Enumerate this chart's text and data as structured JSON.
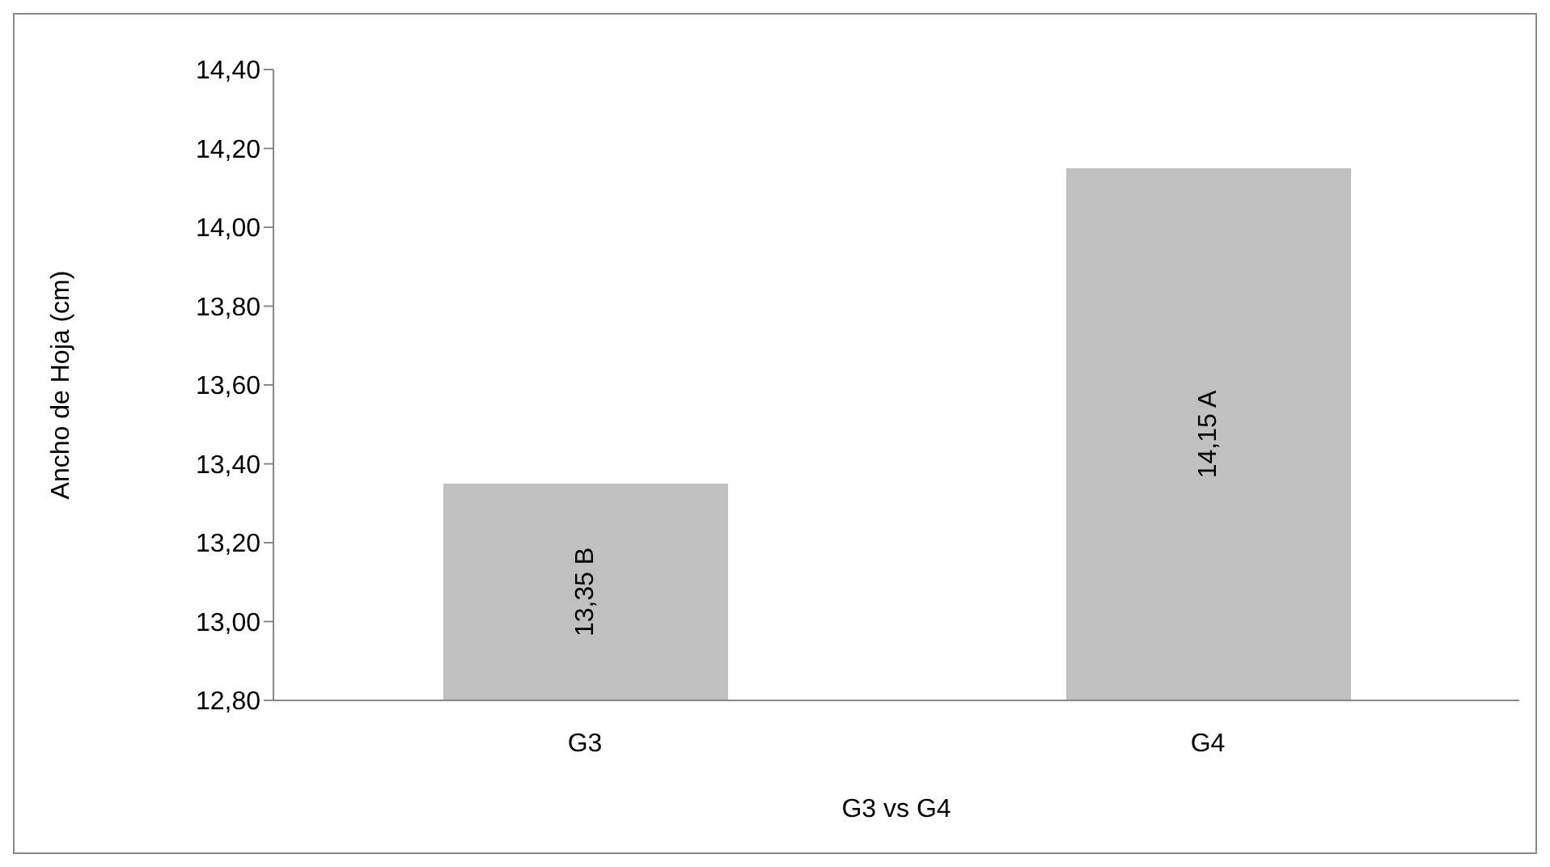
{
  "chart_data": {
    "type": "bar",
    "xlabel": "G3 vs G4",
    "ylabel": "Ancho de Hoja (cm)",
    "categories": [
      "G3",
      "G4"
    ],
    "values": [
      13.35,
      14.15
    ],
    "value_labels": [
      "13,35 B",
      "14,15 A"
    ],
    "color": "#c0c0c0",
    "ylim": [
      12.8,
      14.4
    ],
    "yticks": [
      {
        "value": 12.8,
        "label": "12,80"
      },
      {
        "value": 13.0,
        "label": "13,00"
      },
      {
        "value": 13.2,
        "label": "13,20"
      },
      {
        "value": 13.4,
        "label": "13,40"
      },
      {
        "value": 13.6,
        "label": "13,60"
      },
      {
        "value": 13.8,
        "label": "13,80"
      },
      {
        "value": 14.0,
        "label": "14,00"
      },
      {
        "value": 14.2,
        "label": "14,20"
      },
      {
        "value": 14.4,
        "label": "14,40"
      }
    ],
    "grid": false,
    "legend": false
  }
}
